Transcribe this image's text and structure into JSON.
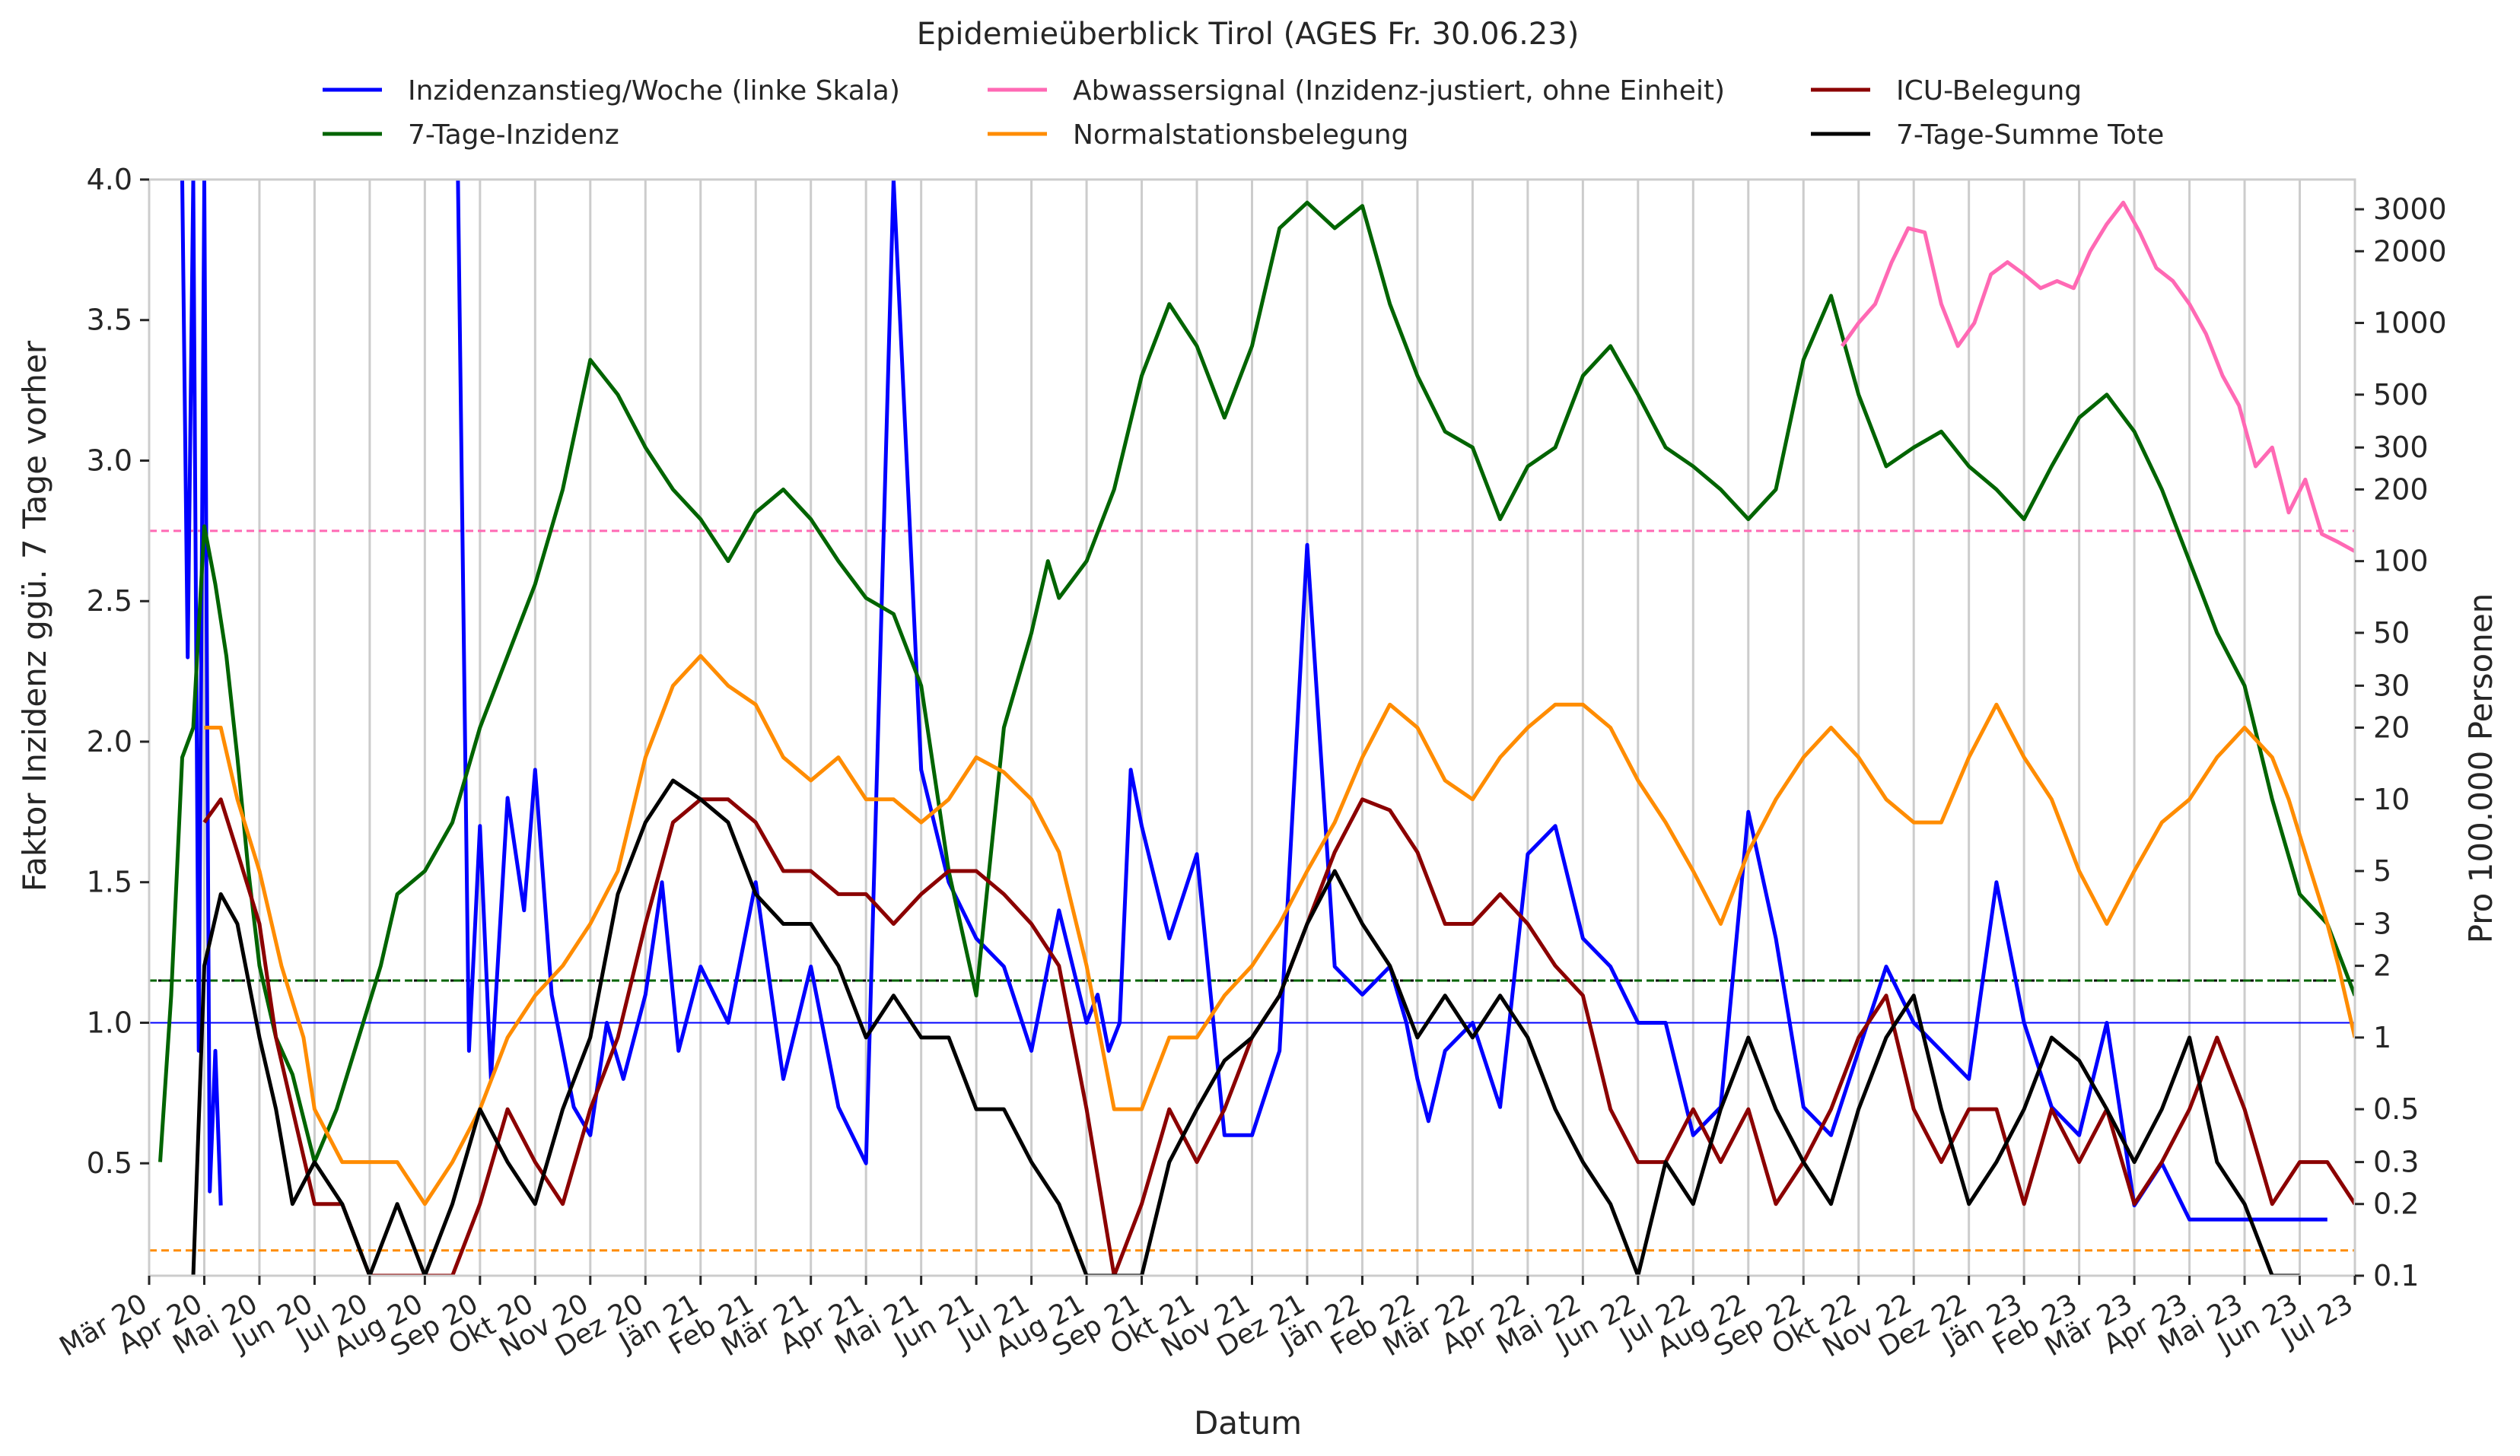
{
  "chart_data": {
    "type": "line",
    "title": "Epidemieüberblick Tirol (AGES Fr. 30.06.23)",
    "xlabel": "Datum",
    "ylabel_left": "Faktor Inzidenz ggü. 7 Tage vorher",
    "ylabel_right": "Pro 100.000 Personen",
    "ylim_left": [
      0.1,
      4.0
    ],
    "ylim_right": [
      0.1,
      4000
    ],
    "right_scale": "log",
    "xlim": [
      "2020-03-01",
      "2023-07-01"
    ],
    "grid": "vertical-monthly",
    "legend_position": "top",
    "x_tick_labels": [
      "Mär 20",
      "Apr 20",
      "Mai 20",
      "Jun 20",
      "Jul 20",
      "Aug 20",
      "Sep 20",
      "Okt 20",
      "Nov 20",
      "Dez 20",
      "Jän 21",
      "Feb 21",
      "Mär 21",
      "Apr 21",
      "Mai 21",
      "Jun 21",
      "Jul 21",
      "Aug 21",
      "Sep 21",
      "Okt 21",
      "Nov 21",
      "Dez 21",
      "Jän 22",
      "Feb 22",
      "Mär 22",
      "Apr 22",
      "Mai 22",
      "Jun 22",
      "Jul 22",
      "Aug 22",
      "Sep 22",
      "Okt 22",
      "Nov 22",
      "Dez 22",
      "Jän 23",
      "Feb 23",
      "Mär 23",
      "Apr 23",
      "Mai 23",
      "Jun 23",
      "Jul 23"
    ],
    "y_ticks_left": [
      {
        "value": 0.5,
        "label": "0.5"
      },
      {
        "value": 1.0,
        "label": "1.0"
      },
      {
        "value": 1.5,
        "label": "1.5"
      },
      {
        "value": 2.0,
        "label": "2.0"
      },
      {
        "value": 2.5,
        "label": "2.5"
      },
      {
        "value": 3.0,
        "label": "3.0"
      },
      {
        "value": 3.5,
        "label": "3.5"
      },
      {
        "value": 4.0,
        "label": "4.0"
      }
    ],
    "y_ticks_right": [
      {
        "value": 0.1,
        "label": "0.1"
      },
      {
        "value": 0.2,
        "label": "0.2"
      },
      {
        "value": 0.3,
        "label": "0.3"
      },
      {
        "value": 0.5,
        "label": "0.5"
      },
      {
        "value": 1,
        "label": "1"
      },
      {
        "value": 2,
        "label": "2"
      },
      {
        "value": 3,
        "label": "3"
      },
      {
        "value": 5,
        "label": "5"
      },
      {
        "value": 10,
        "label": "10"
      },
      {
        "value": 20,
        "label": "20"
      },
      {
        "value": 30,
        "label": "30"
      },
      {
        "value": 50,
        "label": "50"
      },
      {
        "value": 100,
        "label": "100"
      },
      {
        "value": 200,
        "label": "200"
      },
      {
        "value": 300,
        "label": "300"
      },
      {
        "value": 500,
        "label": "500"
      },
      {
        "value": 1000,
        "label": "1000"
      },
      {
        "value": 2000,
        "label": "2000"
      },
      {
        "value": 3000,
        "label": "3000"
      }
    ],
    "reference_lines": [
      {
        "axis": "left",
        "value": 1.0,
        "color": "#0000ff"
      },
      {
        "axis": "left",
        "value": 1.15,
        "color": "#000000",
        "style": "dotted"
      },
      {
        "axis": "left",
        "value": 1.15,
        "color": "#006400",
        "style": "dashed"
      },
      {
        "axis": "left",
        "value": 2.75,
        "color": "#ff69b4",
        "style": "dashed"
      },
      {
        "axis": "left",
        "value": 0.19,
        "color": "#ff8c00",
        "style": "dashed"
      }
    ],
    "legend": [
      {
        "label": "Inzidenzanstieg/Woche (linke Skala)",
        "color": "#0000ff"
      },
      {
        "label": "7-Tage-Inzidenz",
        "color": "#006400"
      },
      {
        "label": "Abwassersignal (Inzidenz-justiert, ohne Einheit)",
        "color": "#ff69b4"
      },
      {
        "label": "Normalstationsbelegung",
        "color": "#ff8c00"
      },
      {
        "label": "ICU-Belegung",
        "color": "#8b0000"
      },
      {
        "label": "7-Tage-Summe Tote",
        "color": "#000000"
      }
    ],
    "series": [
      {
        "name": "Inzidenzanstieg/Woche (linke Skala)",
        "axis": "left",
        "color": "#0000ff",
        "x": [
          0.6,
          0.7,
          0.8,
          0.9,
          1.0,
          1.1,
          1.2,
          1.3,
          1.5,
          1.7,
          1.9,
          2.0,
          2.3,
          2.7,
          3.0,
          3.4,
          4.0,
          4.5,
          5.0,
          5.6,
          5.8,
          6.0,
          6.2,
          6.5,
          6.8,
          7.0,
          7.3,
          7.7,
          8.0,
          8.3,
          8.6,
          9.0,
          9.3,
          9.6,
          10.0,
          10.5,
          11.0,
          11.5,
          12.0,
          12.5,
          13.0,
          13.5,
          14.0,
          14.5,
          15.0,
          15.5,
          16.0,
          16.5,
          17.0,
          17.2,
          17.4,
          17.6,
          17.8,
          18.0,
          18.5,
          19.0,
          19.5,
          20.0,
          20.5,
          21.0,
          21.5,
          22.0,
          22.5,
          22.8,
          23.0,
          23.2,
          23.5,
          24.0,
          24.5,
          25.0,
          25.5,
          26.0,
          26.5,
          27.0,
          27.5,
          28.0,
          28.5,
          29.0,
          29.5,
          30.0,
          30.5,
          31.0,
          31.5,
          32.0,
          32.5,
          33.0,
          33.5,
          34.0,
          34.5,
          35.0,
          35.5,
          36.0,
          36.5,
          37.0,
          37.5,
          38.0,
          38.5,
          39.0,
          39.5
        ],
        "y": [
          4.0,
          2.3,
          4.0,
          0.9,
          4.0,
          0.4,
          0.9,
          0.35,
          null,
          null,
          null,
          null,
          null,
          null,
          null,
          null,
          null,
          null,
          null,
          4.0,
          0.9,
          1.7,
          0.8,
          1.8,
          1.4,
          1.9,
          1.1,
          0.7,
          0.6,
          1.0,
          0.8,
          1.1,
          1.5,
          0.9,
          1.2,
          1.0,
          1.5,
          0.8,
          1.2,
          0.7,
          0.5,
          4.0,
          1.9,
          1.5,
          1.3,
          1.2,
          0.9,
          1.4,
          1.0,
          1.1,
          0.9,
          1.0,
          1.9,
          1.7,
          1.3,
          1.6,
          0.6,
          0.6,
          0.9,
          2.7,
          1.2,
          1.1,
          1.2,
          1.0,
          0.8,
          0.65,
          0.9,
          1.0,
          0.7,
          1.6,
          1.7,
          1.3,
          1.2,
          1.0,
          1.0,
          0.6,
          0.7,
          1.75,
          1.3,
          0.7,
          0.6,
          0.9,
          1.2,
          1.0,
          0.9,
          0.8,
          1.5,
          1.0,
          0.7,
          0.6,
          1.0,
          0.35,
          0.5,
          0.3,
          0.3,
          0.3,
          0.3,
          0.3,
          0.3
        ]
      },
      {
        "name": "7-Tage-Inzidenz",
        "axis": "right",
        "color": "#006400",
        "x": [
          0.2,
          0.4,
          0.6,
          0.8,
          1.0,
          1.2,
          1.4,
          1.6,
          1.8,
          2.0,
          2.3,
          2.6,
          3.0,
          3.4,
          3.8,
          4.2,
          4.5,
          5.0,
          5.5,
          6.0,
          6.5,
          7.0,
          7.5,
          8.0,
          8.5,
          9.0,
          9.5,
          10.0,
          10.5,
          11.0,
          11.5,
          12.0,
          12.5,
          13.0,
          13.5,
          14.0,
          14.5,
          15.0,
          15.5,
          16.0,
          16.3,
          16.5,
          17.0,
          17.5,
          18.0,
          18.5,
          19.0,
          19.5,
          20.0,
          20.5,
          21.0,
          21.5,
          22.0,
          22.5,
          23.0,
          23.5,
          24.0,
          24.5,
          25.0,
          25.5,
          26.0,
          26.5,
          27.0,
          27.5,
          28.0,
          28.5,
          29.0,
          29.5,
          30.0,
          30.5,
          31.0,
          31.5,
          32.0,
          32.5,
          33.0,
          33.5,
          34.0,
          34.5,
          35.0,
          35.5,
          36.0,
          36.5,
          37.0,
          37.5,
          38.0,
          38.5,
          39.0,
          39.5,
          40.0
        ],
        "y": [
          0.3,
          1.5,
          15,
          20,
          140,
          80,
          40,
          15,
          5,
          2,
          1,
          0.7,
          0.3,
          0.5,
          1,
          2,
          4,
          5,
          8,
          20,
          40,
          80,
          200,
          700,
          500,
          300,
          200,
          150,
          100,
          160,
          200,
          150,
          100,
          70,
          60,
          30,
          5,
          1.5,
          20,
          50,
          100,
          70,
          100,
          200,
          600,
          1200,
          800,
          400,
          800,
          2500,
          3200,
          2500,
          3100,
          1200,
          600,
          350,
          300,
          150,
          250,
          300,
          600,
          800,
          500,
          300,
          250,
          200,
          150,
          200,
          700,
          1300,
          500,
          250,
          300,
          350,
          250,
          200,
          150,
          250,
          400,
          500,
          350,
          200,
          100,
          50,
          30,
          10,
          4,
          3,
          1.5
        ]
      },
      {
        "name": "Abwassersignal (Inzidenz-justiert, ohne Einheit)",
        "axis": "right",
        "color": "#ff69b4",
        "x": [
          30.7,
          31.0,
          31.3,
          31.6,
          31.9,
          32.2,
          32.5,
          32.8,
          33.1,
          33.4,
          33.7,
          34.0,
          34.3,
          34.6,
          34.9,
          35.2,
          35.5,
          35.8,
          36.1,
          36.4,
          36.7,
          37.0,
          37.3,
          37.6,
          37.9,
          38.2,
          38.5,
          38.8,
          39.1,
          39.4,
          39.7,
          40.0
        ],
        "y": [
          800,
          1000,
          1200,
          1800,
          2500,
          2400,
          1200,
          800,
          1000,
          1600,
          1800,
          1600,
          1400,
          1500,
          1400,
          2000,
          2600,
          3200,
          2400,
          1700,
          1500,
          1200,
          900,
          600,
          450,
          250,
          300,
          160,
          220,
          130,
          120,
          110
        ]
      },
      {
        "name": "Normalstationsbelegung",
        "axis": "right",
        "color": "#ff8c00",
        "x": [
          1.0,
          1.3,
          1.6,
          2.0,
          2.4,
          2.8,
          3.0,
          3.5,
          4.0,
          4.5,
          5.0,
          5.5,
          6.0,
          6.5,
          7.0,
          7.5,
          8.0,
          8.5,
          9.0,
          9.5,
          10.0,
          10.5,
          11.0,
          11.5,
          12.0,
          12.5,
          13.0,
          13.5,
          14.0,
          14.5,
          15.0,
          15.5,
          16.0,
          16.5,
          17.0,
          17.5,
          18.0,
          18.5,
          19.0,
          19.5,
          20.0,
          20.5,
          21.0,
          21.5,
          22.0,
          22.5,
          23.0,
          23.5,
          24.0,
          24.5,
          25.0,
          25.5,
          26.0,
          26.5,
          27.0,
          27.5,
          28.0,
          28.5,
          29.0,
          29.5,
          30.0,
          30.5,
          31.0,
          31.5,
          32.0,
          32.5,
          33.0,
          33.5,
          34.0,
          34.5,
          35.0,
          35.5,
          36.0,
          36.5,
          37.0,
          37.5,
          38.0,
          38.5,
          38.8,
          39.2,
          39.5,
          39.7,
          40.0
        ],
        "y": [
          20,
          20,
          10,
          5,
          2,
          1,
          0.5,
          0.3,
          0.3,
          0.3,
          0.2,
          0.3,
          0.5,
          1,
          1.5,
          2,
          3,
          5,
          15,
          30,
          40,
          30,
          25,
          15,
          12,
          15,
          10,
          10,
          8,
          10,
          15,
          13,
          10,
          6,
          2,
          0.5,
          0.5,
          1,
          1,
          1.5,
          2,
          3,
          5,
          8,
          15,
          25,
          20,
          12,
          10,
          15,
          20,
          25,
          25,
          20,
          12,
          8,
          5,
          3,
          6,
          10,
          15,
          20,
          15,
          10,
          8,
          8,
          15,
          25,
          15,
          10,
          5,
          3,
          5,
          8,
          10,
          15,
          20,
          15,
          10,
          5,
          3,
          2,
          1
        ]
      },
      {
        "name": "ICU-Belegung",
        "axis": "right",
        "color": "#8b0000",
        "x": [
          1.0,
          1.3,
          1.6,
          2.0,
          2.3,
          2.6,
          3.0,
          3.5,
          4.0,
          4.5,
          5.0,
          5.5,
          6.0,
          6.5,
          7.0,
          7.5,
          8.0,
          8.5,
          9.0,
          9.5,
          10.0,
          10.5,
          11.0,
          11.5,
          12.0,
          12.5,
          13.0,
          13.5,
          14.0,
          14.5,
          15.0,
          15.5,
          16.0,
          16.5,
          17.0,
          17.5,
          18.0,
          18.5,
          19.0,
          19.5,
          20.0,
          20.5,
          21.0,
          21.5,
          22.0,
          22.5,
          23.0,
          23.5,
          24.0,
          24.5,
          25.0,
          25.5,
          26.0,
          26.5,
          27.0,
          27.5,
          28.0,
          28.5,
          29.0,
          29.5,
          30.0,
          30.5,
          31.0,
          31.5,
          32.0,
          32.5,
          33.0,
          33.5,
          34.0,
          34.5,
          35.0,
          35.5,
          36.0,
          36.5,
          37.0,
          37.5,
          38.0,
          38.5,
          39.0,
          39.5,
          40.0
        ],
        "y": [
          8,
          10,
          6,
          3,
          1,
          0.5,
          0.2,
          0.2,
          0.1,
          0.1,
          0.1,
          0.1,
          0.2,
          0.5,
          0.3,
          0.2,
          0.5,
          1,
          3,
          8,
          10,
          10,
          8,
          5,
          5,
          4,
          4,
          3,
          4,
          5,
          5,
          4,
          3,
          2,
          0.5,
          0.1,
          0.2,
          0.5,
          0.3,
          0.5,
          1,
          1.5,
          3,
          6,
          10,
          9,
          6,
          3,
          3,
          4,
          3,
          2,
          1.5,
          0.5,
          0.3,
          0.3,
          0.5,
          0.3,
          0.5,
          0.2,
          0.3,
          0.5,
          1,
          1.5,
          0.5,
          0.3,
          0.5,
          0.5,
          0.2,
          0.5,
          0.3,
          0.5,
          0.2,
          0.3,
          0.5,
          1,
          0.5,
          0.2,
          0.3,
          0.3,
          0.2
        ]
      },
      {
        "name": "7-Tage-Summe Tote",
        "axis": "right",
        "color": "#000000",
        "x": [
          0.8,
          1.0,
          1.3,
          1.6,
          2.0,
          2.3,
          2.6,
          3.0,
          3.5,
          4.0,
          4.5,
          5.0,
          5.5,
          6.0,
          6.5,
          7.0,
          7.5,
          8.0,
          8.5,
          9.0,
          9.5,
          10.0,
          10.5,
          11.0,
          11.5,
          12.0,
          12.5,
          13.0,
          13.5,
          14.0,
          14.5,
          15.0,
          15.5,
          16.0,
          16.5,
          17.0,
          17.5,
          18.0,
          18.5,
          19.0,
          19.5,
          20.0,
          20.5,
          21.0,
          21.5,
          22.0,
          22.5,
          23.0,
          23.5,
          24.0,
          24.5,
          25.0,
          25.5,
          26.0,
          26.5,
          27.0,
          27.5,
          28.0,
          28.5,
          29.0,
          29.5,
          30.0,
          30.5,
          31.0,
          31.5,
          32.0,
          32.5,
          33.0,
          33.5,
          34.0,
          34.5,
          35.0,
          35.5,
          36.0,
          36.5,
          37.0,
          37.5,
          38.0,
          38.5,
          39.0
        ],
        "y": [
          0.1,
          2,
          4,
          3,
          1,
          0.5,
          0.2,
          0.3,
          0.2,
          0.1,
          0.2,
          0.1,
          0.2,
          0.5,
          0.3,
          0.2,
          0.5,
          1,
          4,
          8,
          12,
          10,
          8,
          4,
          3,
          3,
          2,
          1,
          1.5,
          1,
          1,
          0.5,
          0.5,
          0.3,
          0.2,
          0.1,
          0.1,
          0.1,
          0.3,
          0.5,
          0.8,
          1,
          1.5,
          3,
          5,
          3,
          2,
          1,
          1.5,
          1,
          1.5,
          1,
          0.5,
          0.3,
          0.2,
          0.1,
          0.3,
          0.2,
          0.5,
          1,
          0.5,
          0.3,
          0.2,
          0.5,
          1,
          1.5,
          0.5,
          0.2,
          0.3,
          0.5,
          1,
          0.8,
          0.5,
          0.3,
          0.5,
          1,
          0.3,
          0.2,
          0.1,
          0.1
        ]
      }
    ]
  }
}
